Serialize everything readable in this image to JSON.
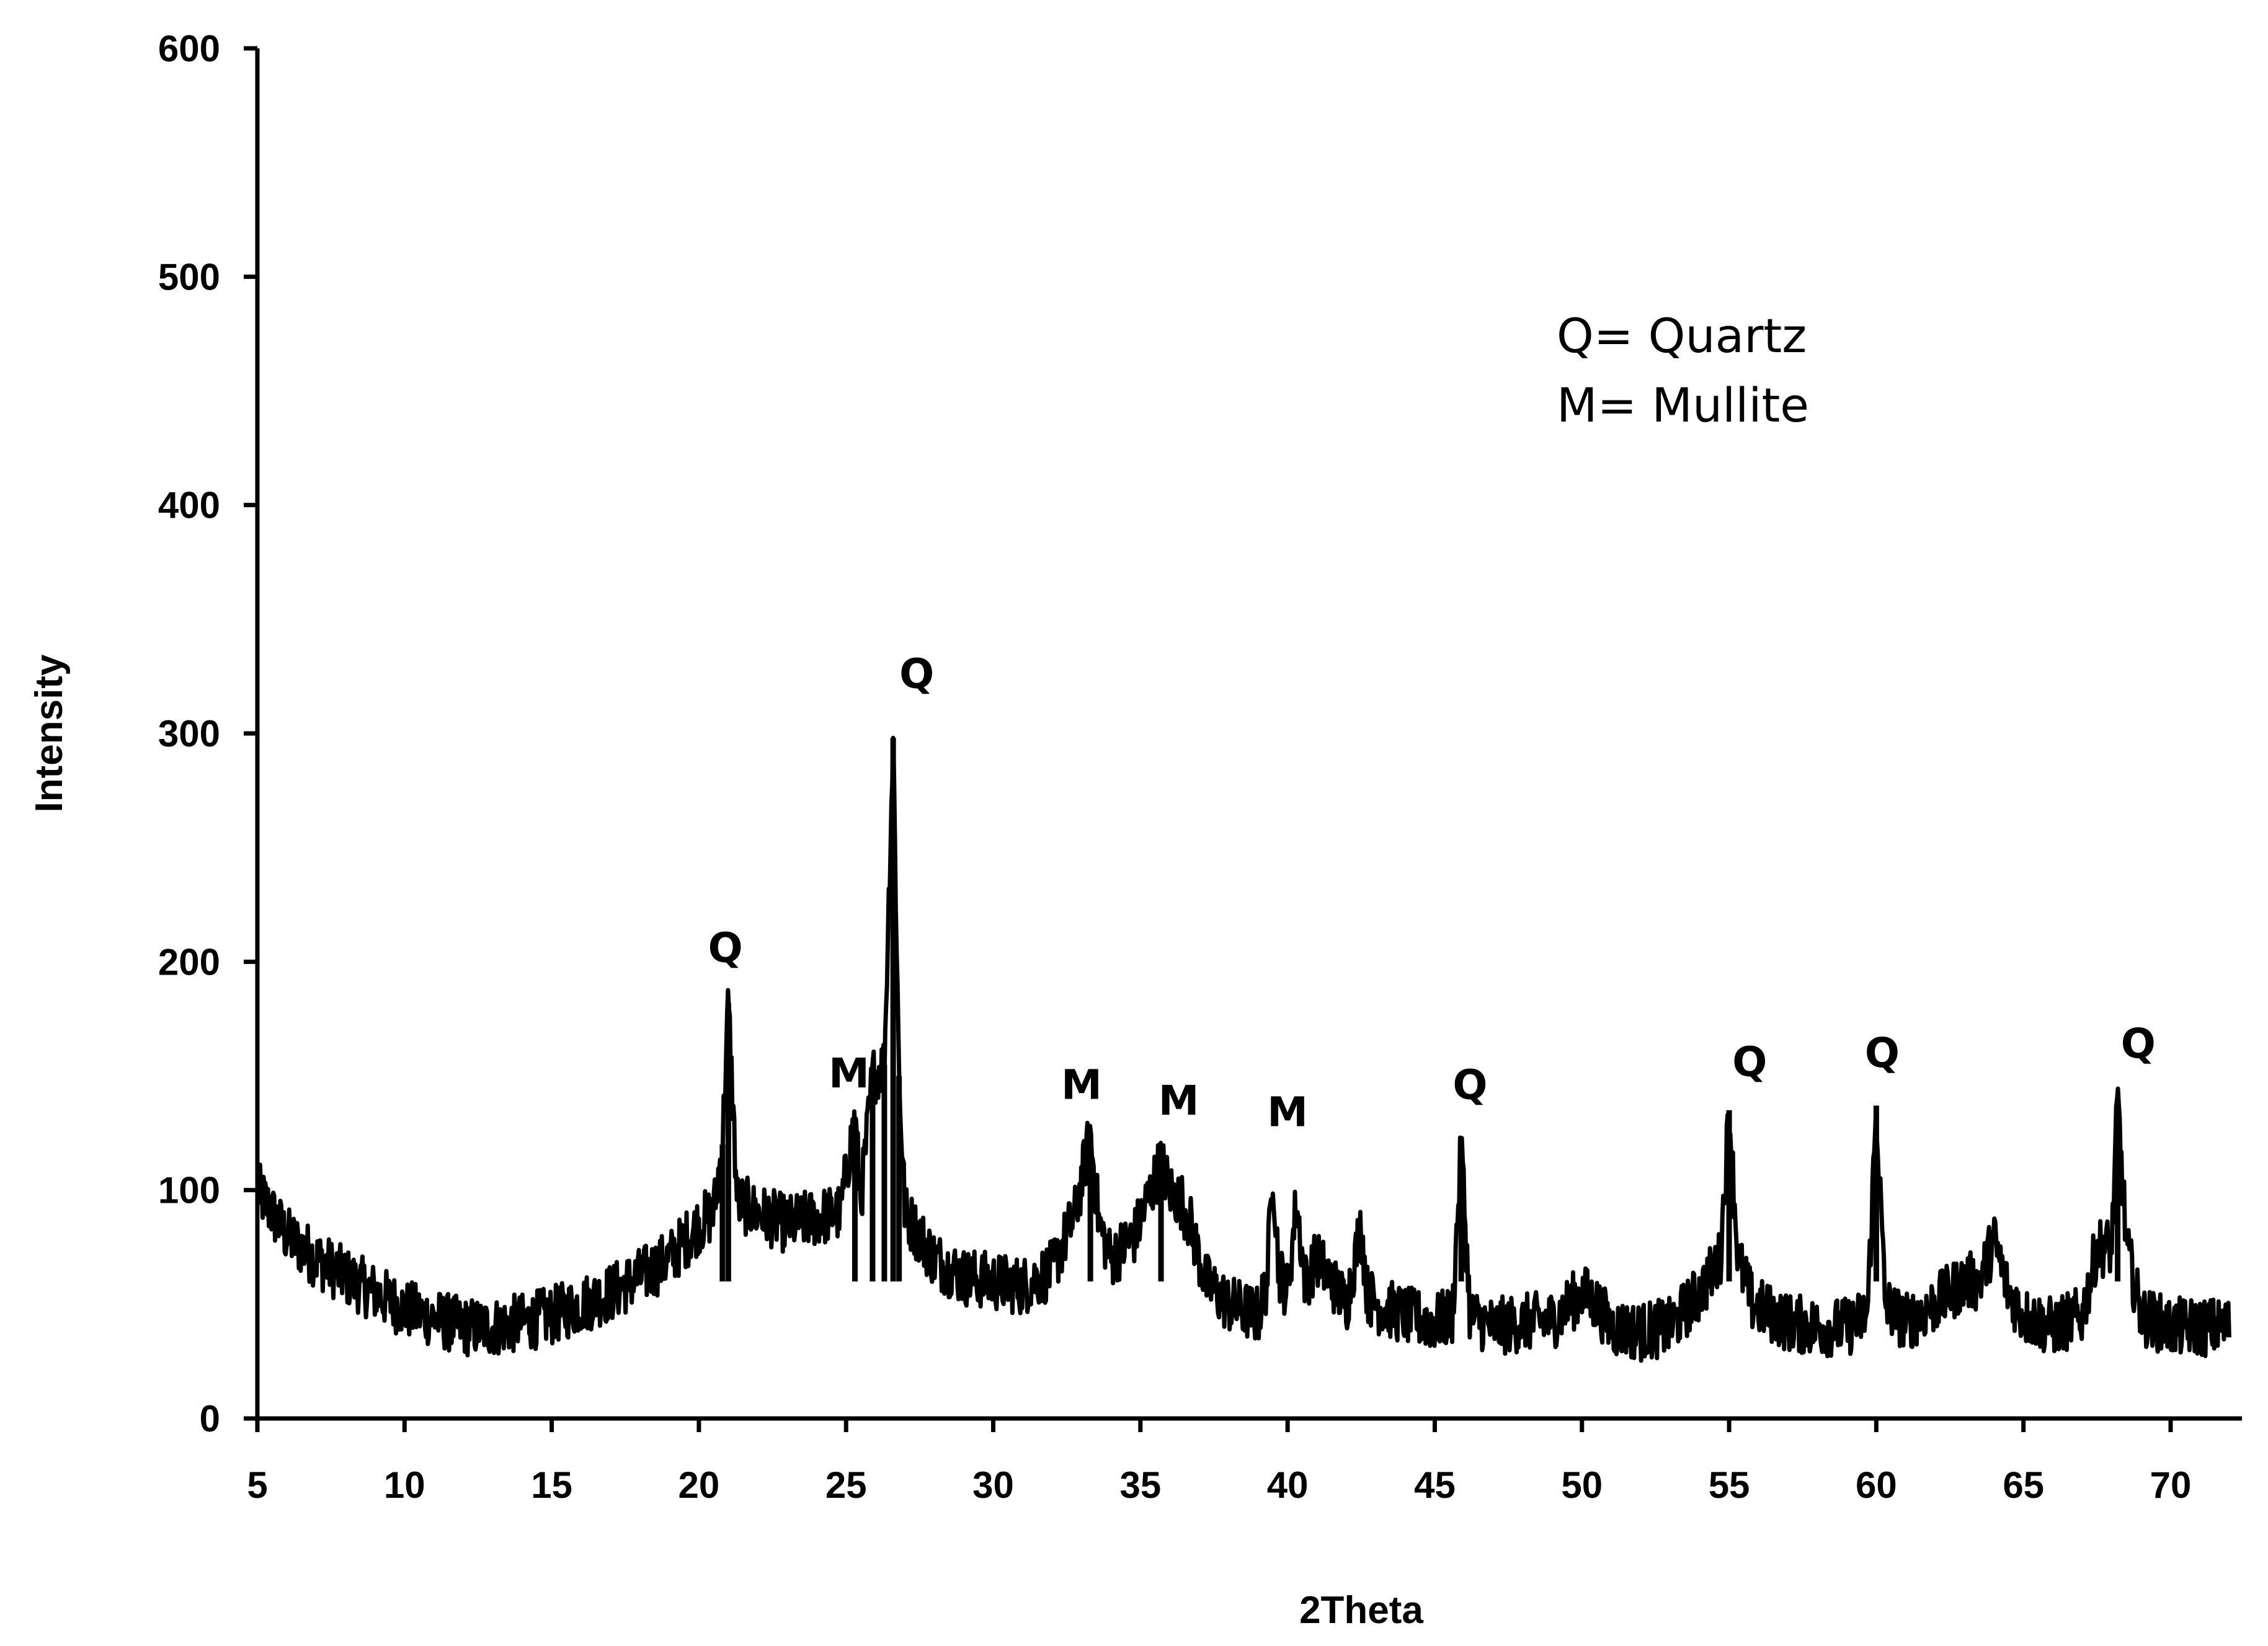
{
  "chart_data": {
    "type": "line",
    "title": "",
    "xlabel": "2Theta",
    "ylabel": "Intensity",
    "xlim": [
      5,
      72
    ],
    "ylim": [
      0,
      600
    ],
    "x_ticks": [
      5,
      10,
      15,
      20,
      25,
      30,
      35,
      40,
      45,
      50,
      55,
      60,
      65,
      70
    ],
    "y_ticks": [
      0,
      100,
      200,
      300,
      400,
      500,
      600
    ],
    "grid": false,
    "line_color": "#000000",
    "series": [
      {
        "x": [
          5,
          6,
          7,
          8,
          9,
          10,
          11,
          12,
          13,
          14,
          15,
          16,
          17,
          18,
          19,
          20,
          20.5,
          20.8,
          21.0,
          21.3,
          22,
          23,
          24,
          24.8,
          25.3,
          25.5,
          25.9,
          26.3,
          26.6,
          26.8,
          27.0,
          27.5,
          28,
          29,
          30,
          31,
          32,
          32.8,
          33.3,
          33.6,
          34,
          34.8,
          35.7,
          36.0,
          36.4,
          36.7,
          37.2,
          38,
          39,
          39.3,
          39.5,
          39.7,
          40.0,
          40.3,
          40.6,
          41,
          42,
          42.5,
          42.7,
          43,
          44,
          45,
          45.6,
          45.9,
          46.2,
          47,
          48,
          49,
          50,
          50.5,
          51,
          52,
          53,
          54,
          54.7,
          55.0,
          55.3,
          55.8,
          57,
          58,
          59,
          59.7,
          60.0,
          60.3,
          61,
          62,
          63,
          63.5,
          64.0,
          64.5,
          65,
          66,
          67,
          67.5,
          68.0,
          68.2,
          68.5,
          69,
          70,
          71,
          72
        ],
        "y": [
          100,
          80,
          70,
          62,
          55,
          48,
          44,
          40,
          40,
          42,
          45,
          50,
          55,
          62,
          70,
          85,
          90,
          120,
          182,
          95,
          90,
          85,
          88,
          90,
          132,
          95,
          150,
          155,
          298,
          150,
          90,
          80,
          70,
          62,
          60,
          58,
          65,
          90,
          125,
          85,
          70,
          80,
          112,
          100,
          95,
          85,
          60,
          50,
          45,
          60,
          110,
          65,
          55,
          95,
          60,
          70,
          50,
          85,
          55,
          50,
          45,
          42,
          45,
          120,
          45,
          40,
          42,
          43,
          55,
          50,
          40,
          38,
          40,
          55,
          70,
          135,
          70,
          50,
          42,
          40,
          40,
          45,
          137,
          50,
          42,
          50,
          60,
          60,
          78,
          55,
          45,
          40,
          45,
          75,
          75,
          140,
          75,
          45,
          40,
          40,
          40
        ]
      }
    ],
    "annotations": [
      {
        "label": "Q",
        "x": 20.9,
        "y": 200
      },
      {
        "label": "M",
        "x": 25.1,
        "y": 145
      },
      {
        "label": "Q",
        "x": 27.4,
        "y": 320
      },
      {
        "label": "M",
        "x": 33.0,
        "y": 140
      },
      {
        "label": "M",
        "x": 36.3,
        "y": 133
      },
      {
        "label": "M",
        "x": 40.0,
        "y": 128
      },
      {
        "label": "Q",
        "x": 46.2,
        "y": 140
      },
      {
        "label": "Q",
        "x": 55.7,
        "y": 150
      },
      {
        "label": "Q",
        "x": 60.2,
        "y": 154
      },
      {
        "label": "Q",
        "x": 68.9,
        "y": 158
      }
    ],
    "legend": {
      "placement": "top-right",
      "entries": [
        "Q= Quartz",
        "M= Mullite"
      ]
    }
  }
}
